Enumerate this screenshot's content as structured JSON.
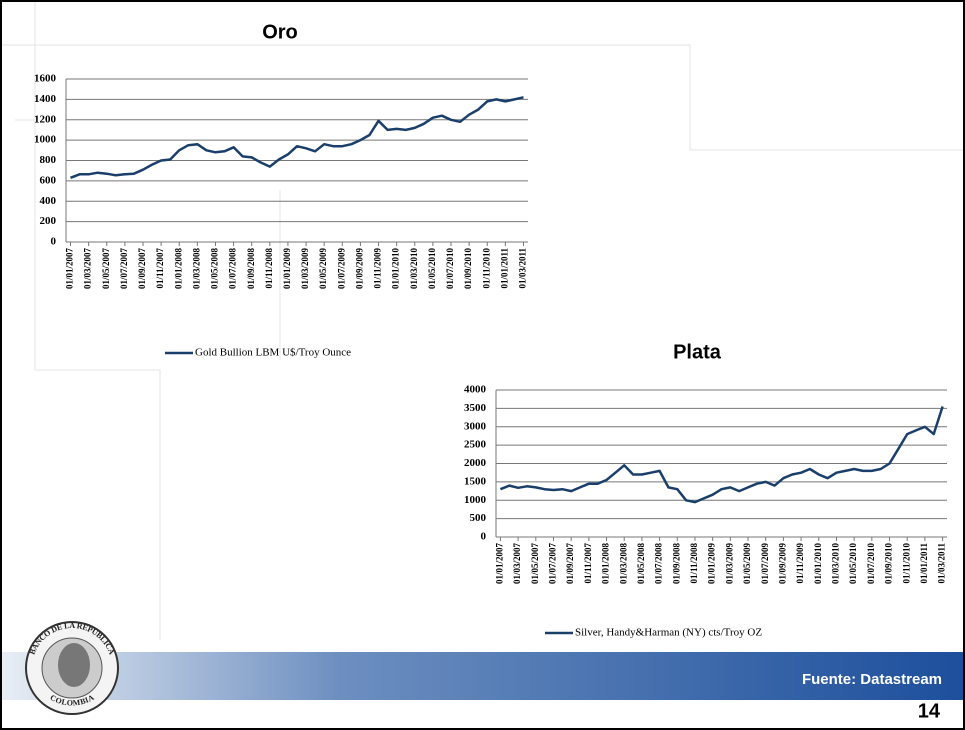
{
  "chart_data": [
    {
      "type": "line",
      "title": "Oro",
      "categories": [
        "01/01/2007",
        null,
        "01/03/2007",
        null,
        "01/05/2007",
        null,
        "01/07/2007",
        null,
        "01/09/2007",
        null,
        "01/11/2007",
        null,
        "01/01/2008",
        null,
        "01/03/2008",
        null,
        "01/05/2008",
        null,
        "01/07/2008",
        null,
        "01/09/2008",
        null,
        "01/11/2008",
        null,
        "01/01/2009",
        null,
        "01/03/2009",
        null,
        "01/05/2009",
        null,
        "01/07/2009",
        null,
        "01/09/2009",
        null,
        "01/11/2009",
        null,
        "01/01/2010",
        null,
        "01/03/2010",
        null,
        "01/05/2010",
        null,
        "01/07/2010",
        null,
        "01/09/2010",
        null,
        "01/11/2010",
        null,
        "01/01/2011",
        null,
        "01/03/2011"
      ],
      "series": [
        {
          "name": "Gold Bullion LBM U$/Troy Ounce",
          "color": "#1b3f6b",
          "values": [
            630,
            665,
            665,
            680,
            670,
            655,
            665,
            670,
            710,
            760,
            800,
            810,
            900,
            950,
            960,
            900,
            880,
            890,
            930,
            840,
            830,
            780,
            740,
            810,
            860,
            940,
            920,
            890,
            960,
            940,
            940,
            960,
            1000,
            1050,
            1190,
            1100,
            1110,
            1100,
            1120,
            1160,
            1220,
            1240,
            1200,
            1180,
            1250,
            1300,
            1380,
            1400,
            1380,
            1400,
            1420
          ]
        }
      ],
      "ylim": [
        0,
        1600
      ],
      "yticks": [
        0,
        200,
        400,
        600,
        800,
        1000,
        1200,
        1400,
        1600
      ],
      "grid": true,
      "legend": "bottom"
    },
    {
      "type": "line",
      "title": "Plata",
      "categories": [
        "01/01/2007",
        null,
        "01/03/2007",
        null,
        "01/05/2007",
        null,
        "01/07/2007",
        null,
        "01/09/2007",
        null,
        "01/11/2007",
        null,
        "01/01/2008",
        null,
        "01/03/2008",
        null,
        "01/05/2008",
        null,
        "01/07/2008",
        null,
        "01/09/2008",
        null,
        "01/11/2008",
        null,
        "01/01/2009",
        null,
        "01/03/2009",
        null,
        "01/05/2009",
        null,
        "01/07/2009",
        null,
        "01/09/2009",
        null,
        "01/11/2009",
        null,
        "01/01/2010",
        null,
        "01/03/2010",
        null,
        "01/05/2010",
        null,
        "01/07/2010",
        null,
        "01/09/2010",
        null,
        "01/11/2010",
        null,
        "01/01/2011",
        null,
        "01/03/2011"
      ],
      "series": [
        {
          "name": "Silver, Handy&Harman (NY) cts/Troy OZ",
          "color": "#1b3f6b",
          "values": [
            1300,
            1400,
            1340,
            1380,
            1350,
            1300,
            1280,
            1300,
            1250,
            1350,
            1450,
            1450,
            1550,
            1750,
            1950,
            1700,
            1700,
            1750,
            1800,
            1350,
            1300,
            1000,
            950,
            1050,
            1150,
            1300,
            1350,
            1250,
            1350,
            1450,
            1500,
            1400,
            1600,
            1700,
            1750,
            1850,
            1700,
            1600,
            1750,
            1800,
            1850,
            1800,
            1800,
            1850,
            2000,
            2400,
            2800,
            2900,
            3000,
            2800,
            3550
          ]
        }
      ],
      "ylim": [
        0,
        4000
      ],
      "yticks": [
        0,
        500,
        1000,
        1500,
        2000,
        2500,
        3000,
        3500,
        4000
      ],
      "grid": true,
      "legend": "bottom"
    }
  ],
  "footer": {
    "source": "Fuente: Datastream",
    "page": "14",
    "logo_top": "BANCO DE LA REPUBLICA",
    "logo_bottom": "COLOMBIA"
  }
}
